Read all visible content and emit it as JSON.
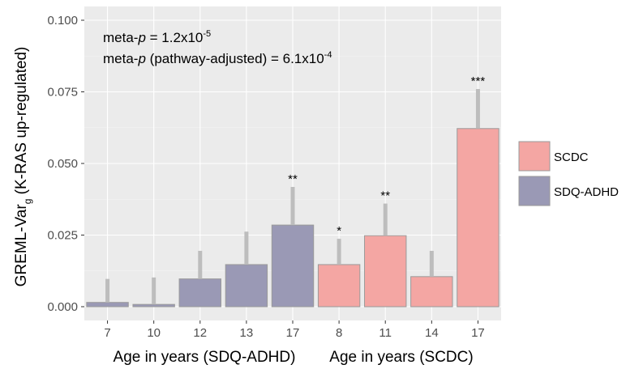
{
  "chart_data": {
    "type": "bar",
    "ylabel_main": "GREML-Var",
    "ylabel_sub": "g",
    "ylabel_tail": " (K-RAS up-regulated)",
    "xlabel_left": "Age in years (SDQ-ADHD)",
    "xlabel_right": "Age in years (SCDC)",
    "ylim": [
      0,
      0.1
    ],
    "yticks": [
      0.0,
      0.025,
      0.05,
      0.075,
      0.1
    ],
    "ytick_labels": [
      "0.000",
      "0.025",
      "0.050",
      "0.075",
      "0.100"
    ],
    "grid": true,
    "legend_position": "right",
    "annotations": {
      "line1_prefix": "meta-",
      "line1_italic": "p",
      "line1_mid": " = 1.2x10",
      "line1_exp": "-5",
      "line2_prefix": "meta-",
      "line2_italic": "p",
      "line2_mid": " (pathway-adjusted) = 6.1x10",
      "line2_exp": "-4"
    },
    "series": [
      {
        "name": "SCDC",
        "color": "#f4a6a3"
      },
      {
        "name": "SDQ-ADHD",
        "color": "#9a99b5"
      }
    ],
    "bars": [
      {
        "label": "7",
        "series": "SDQ-ADHD",
        "value": 0.0015,
        "err_top": 0.0097,
        "sig": ""
      },
      {
        "label": "10",
        "series": "SDQ-ADHD",
        "value": 0.0008,
        "err_top": 0.0102,
        "sig": ""
      },
      {
        "label": "12",
        "series": "SDQ-ADHD",
        "value": 0.0097,
        "err_top": 0.0195,
        "sig": ""
      },
      {
        "label": "13",
        "series": "SDQ-ADHD",
        "value": 0.0147,
        "err_top": 0.0262,
        "sig": ""
      },
      {
        "label": "17",
        "series": "SDQ-ADHD",
        "value": 0.0285,
        "err_top": 0.0418,
        "sig": "**"
      },
      {
        "label": "8",
        "series": "SCDC",
        "value": 0.0147,
        "err_top": 0.0237,
        "sig": "*"
      },
      {
        "label": "11",
        "series": "SCDC",
        "value": 0.0248,
        "err_top": 0.036,
        "sig": "**"
      },
      {
        "label": "14",
        "series": "SCDC",
        "value": 0.0105,
        "err_top": 0.0195,
        "sig": ""
      },
      {
        "label": "17",
        "series": "SCDC",
        "value": 0.0622,
        "err_top": 0.076,
        "sig": "***"
      }
    ]
  }
}
